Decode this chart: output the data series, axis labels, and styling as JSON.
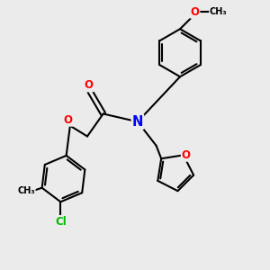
{
  "bg_color": "#ebebeb",
  "bond_color": "#000000",
  "bond_width": 1.5,
  "atom_colors": {
    "O": "#ff0000",
    "N": "#0000ff",
    "Cl": "#00bb00",
    "C": "#000000"
  },
  "font_size": 8.5,
  "fig_size": [
    3.0,
    3.0
  ],
  "dpi": 100
}
